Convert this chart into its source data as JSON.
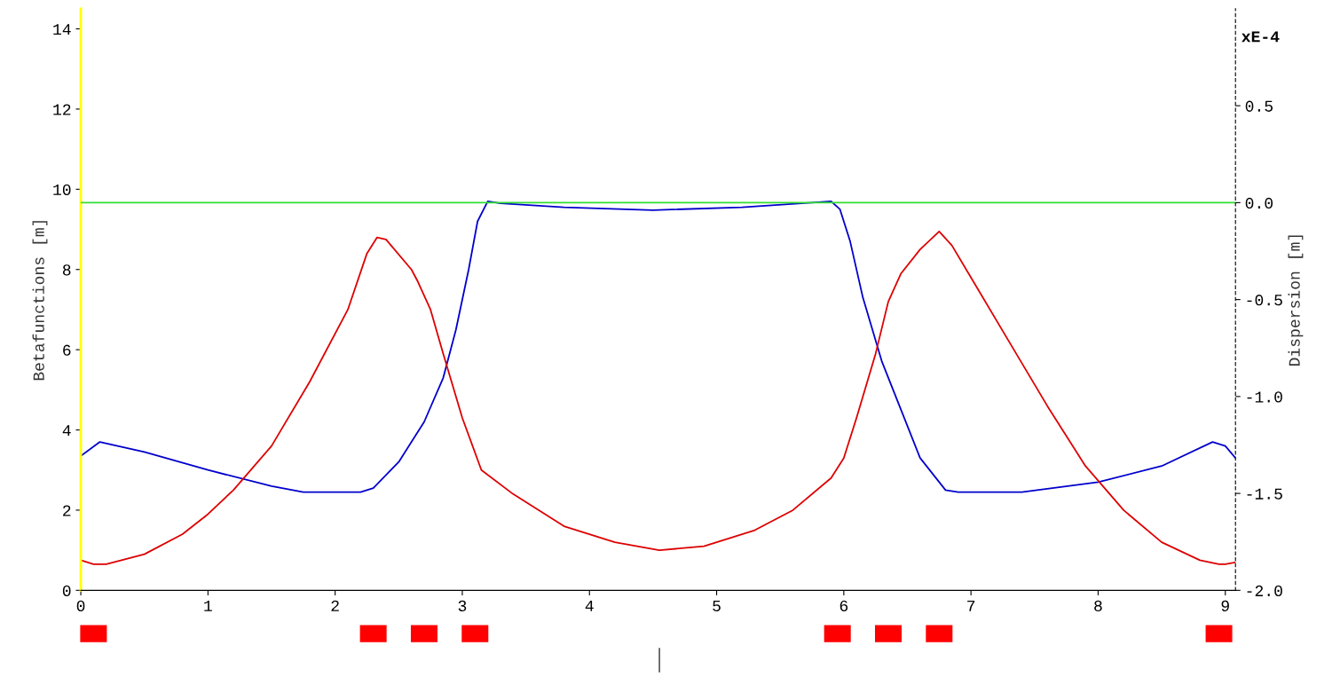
{
  "chart_data": {
    "type": "line",
    "ylabel": "Betafunctions [m]",
    "y2label": "Dispersion [m]",
    "annotations": [
      "xE-4"
    ],
    "xlim": [
      0,
      9.08
    ],
    "xticks": [
      0,
      1,
      2,
      3,
      4,
      5,
      6,
      7,
      8,
      9
    ],
    "ylim": [
      0,
      14.5
    ],
    "yticks": [
      0,
      2,
      4,
      6,
      8,
      10,
      12,
      14
    ],
    "y2lim": [
      -2.0,
      1.0
    ],
    "y2ticks": [
      {
        "value": -2.0,
        "label": "-2.0"
      },
      {
        "value": -1.5,
        "label": "-1.5"
      },
      {
        "value": -1.0,
        "label": "-1.0"
      },
      {
        "value": -0.5,
        "label": "-0.5"
      },
      {
        "value": 0.0,
        "label": "0.0"
      },
      {
        "value": 0.5,
        "label": "0.5"
      }
    ],
    "grid": false,
    "marker": "none",
    "line_style": "solid",
    "series": [
      {
        "color": "#0000cc",
        "x": [
          0,
          0.15,
          0.5,
          1.0,
          1.5,
          1.75,
          2.2,
          2.3,
          2.5,
          2.7,
          2.85,
          2.95,
          3.05,
          3.12,
          3.2,
          3.3,
          3.8,
          4.5,
          5.2,
          5.8,
          5.9,
          5.97,
          6.05,
          6.15,
          6.3,
          6.45,
          6.6,
          6.8,
          6.9,
          7.4,
          8.0,
          8.5,
          8.9,
          9.0,
          9.08
        ],
        "values": [
          3.35,
          3.7,
          3.45,
          3.0,
          2.6,
          2.45,
          2.45,
          2.55,
          3.2,
          4.2,
          5.3,
          6.5,
          8.0,
          9.2,
          9.7,
          9.65,
          9.55,
          9.48,
          9.55,
          9.68,
          9.7,
          9.5,
          8.7,
          7.3,
          5.7,
          4.5,
          3.3,
          2.5,
          2.45,
          2.45,
          2.7,
          3.1,
          3.7,
          3.6,
          3.3
        ]
      },
      {
        "color": "#dd0000",
        "x": [
          0,
          0.1,
          0.2,
          0.5,
          0.8,
          1.0,
          1.2,
          1.5,
          1.8,
          2.1,
          2.25,
          2.33,
          2.4,
          2.6,
          2.65,
          2.75,
          2.85,
          3.0,
          3.15,
          3.4,
          3.8,
          4.2,
          4.55,
          4.9,
          5.3,
          5.6,
          5.9,
          6.0,
          6.1,
          6.25,
          6.35,
          6.45,
          6.6,
          6.75,
          6.85,
          7.0,
          7.3,
          7.6,
          7.9,
          8.2,
          8.5,
          8.8,
          8.95,
          9.0,
          9.08
        ],
        "values": [
          0.75,
          0.65,
          0.65,
          0.9,
          1.4,
          1.9,
          2.5,
          3.6,
          5.2,
          7.0,
          8.4,
          8.8,
          8.75,
          8.0,
          7.7,
          7.0,
          5.9,
          4.3,
          3.0,
          2.4,
          1.6,
          1.2,
          1.0,
          1.1,
          1.5,
          2.0,
          2.8,
          3.3,
          4.3,
          5.9,
          7.2,
          7.9,
          8.5,
          8.95,
          8.6,
          7.8,
          6.2,
          4.6,
          3.1,
          2.0,
          1.2,
          0.75,
          0.65,
          0.65,
          0.7
        ]
      },
      {
        "color": "#33dd33",
        "axis": "y2",
        "x": [
          0,
          9.08
        ],
        "values": [
          0.0,
          0.0
        ]
      }
    ]
  }
}
